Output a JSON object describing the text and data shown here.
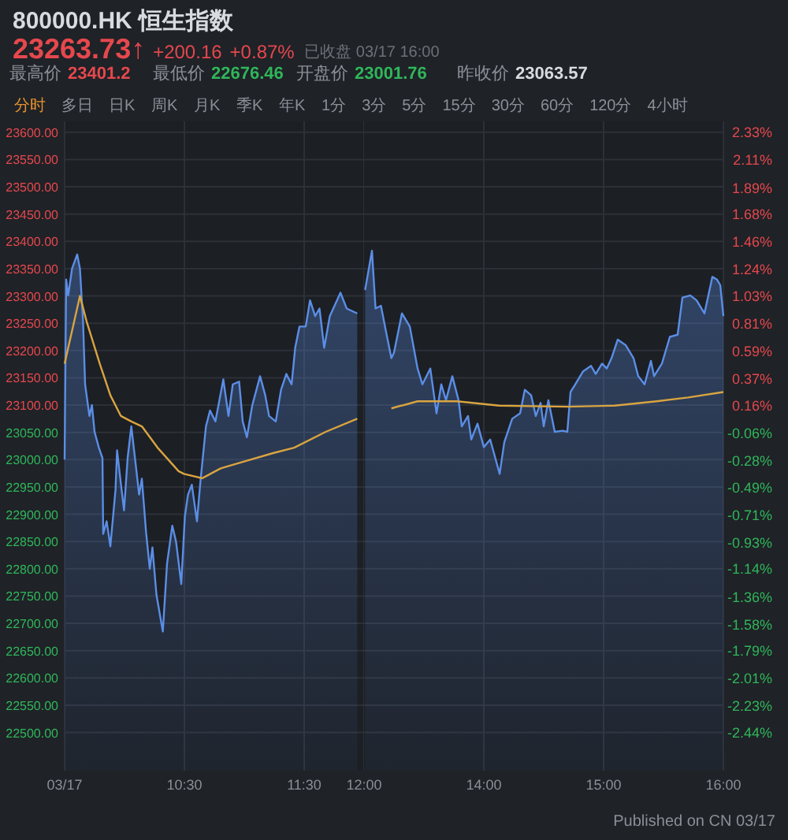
{
  "chart_data": [
    {
      "type": "area",
      "title": "800000.HK 恒生指数",
      "subtitle": "23263.73↑ +200.16 +0.87%",
      "annotations": [
        "已收盘 03/17 16:00",
        "最高价 23401.2",
        "最低价 22676.46",
        "开盘价 23001.76",
        "昨收价 23063.57",
        "分时",
        "多日",
        "日K",
        "周K",
        "月K",
        "季K",
        "年K",
        "1分",
        "3分",
        "5分",
        "15分",
        "30分",
        "60分",
        "120分",
        "4小时",
        "Published on CN 03/17"
      ],
      "xlim": [
        9.5,
        12
      ],
      "xticks": [
        {
          "value": 9.5,
          "label": "03/17"
        },
        {
          "value": 10.5,
          "label": "10:30"
        },
        {
          "value": 11.5,
          "label": "11:30"
        },
        {
          "value": 12,
          "label": "12:00"
        }
      ],
      "ylim": [
        22430,
        23620
      ],
      "yticks": [
        {
          "value": 23600,
          "label": "23600.00"
        },
        {
          "value": 23550,
          "label": "23550.00"
        },
        {
          "value": 23500,
          "label": "23500.00"
        },
        {
          "value": 23450,
          "label": "23450.00"
        },
        {
          "value": 23400,
          "label": "23400.00"
        },
        {
          "value": 23350,
          "label": "23350.00"
        },
        {
          "value": 23300,
          "label": "23300.00"
        },
        {
          "value": 23250,
          "label": "23250.00"
        },
        {
          "value": 23200,
          "label": "23200.00"
        },
        {
          "value": 23150,
          "label": "23150.00"
        },
        {
          "value": 23100,
          "label": "23100.00"
        },
        {
          "value": 23050,
          "label": "23050.00"
        },
        {
          "value": 23000,
          "label": "23000.00"
        },
        {
          "value": 22950,
          "label": "22950.00"
        },
        {
          "value": 22900,
          "label": "22900.00"
        },
        {
          "value": 22850,
          "label": "22850.00"
        },
        {
          "value": 22800,
          "label": "22800.00"
        },
        {
          "value": 22750,
          "label": "22750.00"
        },
        {
          "value": 22700,
          "label": "22700.00"
        },
        {
          "value": 22650,
          "label": "22650.00"
        },
        {
          "value": 22600,
          "label": "22600.00"
        },
        {
          "value": 22550,
          "label": "22550.00"
        },
        {
          "value": 22500,
          "label": "22500.00"
        }
      ],
      "grid": true,
      "series": [
        {
          "type": "area",
          "color": "#5b8ee6",
          "x": [
            9.5,
            9.513,
            9.53,
            9.562,
            9.605,
            9.628,
            9.654,
            9.671,
            9.707,
            9.728,
            9.75,
            9.786,
            9.816,
            9.822,
            9.851,
            9.882,
            9.925,
            9.938,
            9.97,
            9.996,
            10.026,
            10.057,
            10.092,
            10.122,
            10.145,
            10.18,
            10.211,
            10.233,
            10.267,
            10.32,
            10.355,
            10.399,
            10.43,
            10.474,
            10.504,
            10.53,
            10.562,
            10.605,
            10.636,
            10.68,
            10.714,
            10.759,
            10.825,
            10.868,
            10.904,
            10.957,
            10.987,
            11.022,
            11.066,
            11.132,
            11.175,
            11.207,
            11.263,
            11.307,
            11.351,
            11.395,
            11.425,
            11.461,
            11.513,
            11.549,
            11.592,
            11.628,
            11.667,
            11.714,
            11.803,
            11.855,
            11.943
          ],
          "values": [
            23000,
            23330,
            23301,
            23350,
            23376,
            23350,
            23253,
            23138,
            23080,
            23100,
            23051,
            23022,
            23003,
            22864,
            22887,
            22841,
            22945,
            23017,
            22955,
            22907,
            23003,
            23061,
            22994,
            22936,
            22965,
            22867,
            22800,
            22839,
            22752,
            22685,
            22809,
            22879,
            22850,
            22772,
            22896,
            22936,
            22954,
            22887,
            22965,
            23061,
            23090,
            23070,
            23147,
            23080,
            23138,
            23143,
            23070,
            23041,
            23099,
            23153,
            23118,
            23080,
            23070,
            23128,
            23157,
            23138,
            23205,
            23244,
            23244,
            23292,
            23263,
            23277,
            23205,
            23263,
            23306,
            23277,
            23268
          ]
        },
        {
          "type": "line",
          "color": "#d9a441",
          "x": [
            9.5,
            9.628,
            9.684,
            9.793,
            9.882,
            9.97,
            10.057,
            10.145,
            10.276,
            10.451,
            10.496,
            10.649,
            10.803,
            11.022,
            11.241,
            11.417,
            11.68,
            11.943
          ],
          "values": [
            23176,
            23300,
            23253,
            23176,
            23118,
            23080,
            23070,
            23061,
            23022,
            22979,
            22974,
            22966,
            22984,
            22998,
            23012,
            23022,
            23051,
            23075
          ]
        }
      ]
    },
    {
      "type": "area",
      "xlim": [
        13,
        16
      ],
      "xticks": [
        {
          "value": 14,
          "label": "14:00"
        },
        {
          "value": 15,
          "label": "15:00"
        },
        {
          "value": 16,
          "label": "16:00"
        }
      ],
      "ylim": [
        22430,
        23620
      ],
      "yticks": [
        23600,
        23550,
        23500,
        23450,
        23400,
        23350,
        23300,
        23250,
        23200,
        23150,
        23100,
        23050,
        23000,
        22950,
        22900,
        22850,
        22800,
        22750,
        22700,
        22650,
        22600,
        22550,
        22500
      ],
      "y2lim": [
        -2.747,
        2.413
      ],
      "y2ticks": [
        {
          "value": 2.33,
          "label": "2.33%"
        },
        {
          "value": 2.11,
          "label": "2.11%"
        },
        {
          "value": 1.89,
          "label": "1.89%"
        },
        {
          "value": 1.68,
          "label": "1.68%"
        },
        {
          "value": 1.46,
          "label": "1.46%"
        },
        {
          "value": 1.24,
          "label": "1.24%"
        },
        {
          "value": 1.03,
          "label": "1.03%"
        },
        {
          "value": 0.81,
          "label": "0.81%"
        },
        {
          "value": 0.59,
          "label": "0.59%"
        },
        {
          "value": 0.37,
          "label": "0.37%"
        },
        {
          "value": 0.16,
          "label": "0.16%"
        },
        {
          "value": -0.06,
          "label": "-0.06%"
        },
        {
          "value": -0.28,
          "label": "-0.28%"
        },
        {
          "value": -0.49,
          "label": "-0.49%"
        },
        {
          "value": -0.71,
          "label": "-0.71%"
        },
        {
          "value": -0.93,
          "label": "-0.93%"
        },
        {
          "value": -1.14,
          "label": "-1.14%"
        },
        {
          "value": -1.36,
          "label": "-1.36%"
        },
        {
          "value": -1.58,
          "label": "-1.58%"
        },
        {
          "value": -1.79,
          "label": "-1.79%"
        },
        {
          "value": -2.01,
          "label": "-2.01%"
        },
        {
          "value": -2.23,
          "label": "-2.23%"
        },
        {
          "value": -2.44,
          "label": "-2.44%"
        }
      ],
      "tick_labels": "x",
      "grid": true,
      "series": [
        {
          "type": "area",
          "color": "#5b8ee6",
          "x": [
            13.009,
            13.066,
            13.096,
            13.141,
            13.184,
            13.228,
            13.25,
            13.316,
            13.382,
            13.447,
            13.487,
            13.553,
            13.605,
            13.645,
            13.684,
            13.737,
            13.789,
            13.816,
            13.868,
            13.895,
            13.947,
            14,
            14.053,
            14.132,
            14.171,
            14.237,
            14.303,
            14.342,
            14.395,
            14.434,
            14.474,
            14.5,
            14.539,
            14.592,
            14.658,
            14.697,
            14.724,
            14.763,
            14.829,
            14.895,
            14.934,
            14.987,
            15.026,
            15.066,
            15.118,
            15.184,
            15.25,
            15.289,
            15.342,
            15.395,
            15.421,
            15.487,
            15.553,
            15.618,
            15.658,
            15.724,
            15.776,
            15.842,
            15.908,
            15.947,
            15.974,
            16
          ],
          "values": [
            23311,
            23383,
            23277,
            23282,
            23234,
            23186,
            23196,
            23268,
            23244,
            23167,
            23138,
            23167,
            23085,
            23138,
            23109,
            23153,
            23109,
            23061,
            23080,
            23037,
            23066,
            23023,
            23037,
            22974,
            23032,
            23075,
            23085,
            23128,
            23118,
            23080,
            23104,
            23061,
            23109,
            23051,
            23053,
            23051,
            23124,
            23138,
            23162,
            23172,
            23157,
            23176,
            23167,
            23186,
            23220,
            23210,
            23186,
            23153,
            23138,
            23181,
            23153,
            23176,
            23225,
            23229,
            23297,
            23301,
            23292,
            23268,
            23335,
            23330,
            23320,
            23263
          ]
        },
        {
          "type": "line",
          "color": "#d9a441",
          "x": [
            13.228,
            13.447,
            13.776,
            14.128,
            14.697,
            15.092,
            15.443,
            15.707,
            16
          ],
          "values": [
            23094,
            23107,
            23107,
            23099,
            23097,
            23099,
            23107,
            23114,
            23124
          ]
        }
      ]
    }
  ]
}
